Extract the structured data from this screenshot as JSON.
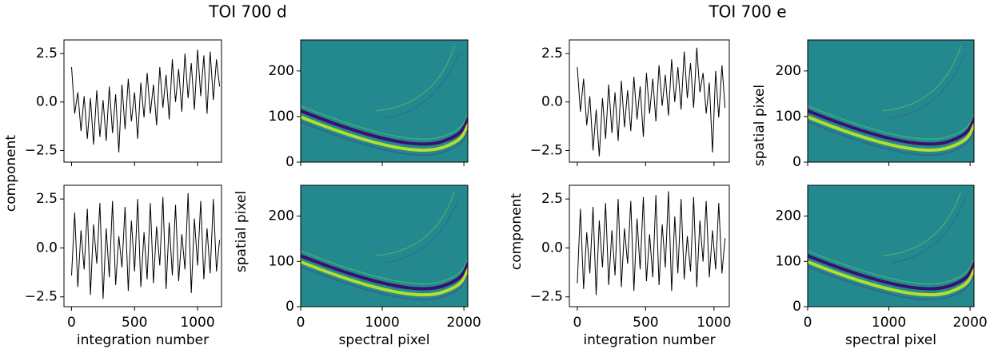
{
  "figure_titles": [
    "TOI 700 d",
    "TOI 700 e"
  ],
  "chart_data": [
    {
      "type": "line",
      "ylabel": "component",
      "show_xtick_labels": false,
      "x": [
        0,
        25,
        50,
        75,
        100,
        125,
        150,
        175,
        200,
        225,
        250,
        275,
        300,
        325,
        350,
        375,
        400,
        425,
        450,
        475,
        500,
        525,
        550,
        575,
        600,
        625,
        650,
        675,
        700,
        725,
        750,
        775,
        800,
        825,
        850,
        875,
        900,
        925,
        950,
        975,
        1000,
        1025,
        1050,
        1075,
        1100,
        1125,
        1150,
        1175
      ],
      "values": [
        1.8,
        -0.6,
        0.5,
        -1.5,
        0.3,
        -1.9,
        0.2,
        -2.2,
        0.6,
        -1.8,
        0.1,
        -2.0,
        0.8,
        -1.6,
        0.4,
        -2.6,
        0.9,
        -1.4,
        1.2,
        -1.0,
        0.5,
        -1.9,
        1.0,
        -0.8,
        1.5,
        -0.6,
        0.9,
        -1.2,
        1.8,
        -0.3,
        1.4,
        -0.9,
        2.2,
        0.0,
        1.7,
        -0.5,
        2.5,
        0.2,
        2.0,
        -0.4,
        2.7,
        0.3,
        2.4,
        -0.6,
        2.6,
        0.1,
        2.2,
        0.8
      ],
      "color": "#000000",
      "xlim": [
        -60,
        1190
      ],
      "ylim": [
        -3.1,
        3.2
      ],
      "xticks": [
        0,
        500,
        1000
      ],
      "yticks": [
        {
          "value": -2.5,
          "label": "−2.5"
        },
        {
          "value": 0,
          "label": "0.0"
        },
        2.5
      ]
    },
    {
      "type": "line",
      "xlabel": "integration number",
      "show_xtick_labels": true,
      "x": [
        0,
        25,
        50,
        75,
        100,
        125,
        150,
        175,
        200,
        225,
        250,
        275,
        300,
        325,
        350,
        375,
        400,
        425,
        450,
        475,
        500,
        525,
        550,
        575,
        600,
        625,
        650,
        675,
        700,
        725,
        750,
        775,
        800,
        825,
        850,
        875,
        900,
        925,
        950,
        975,
        1000,
        1025,
        1050,
        1075,
        1100,
        1125,
        1150,
        1175
      ],
      "values": [
        -1.4,
        1.8,
        -2.0,
        0.9,
        -1.1,
        2.0,
        -2.4,
        1.2,
        -0.8,
        2.3,
        -2.6,
        1.0,
        -1.5,
        2.4,
        -1.9,
        0.6,
        -1.0,
        2.1,
        -2.2,
        1.4,
        -1.2,
        2.5,
        -2.0,
        0.8,
        -1.6,
        2.3,
        -1.8,
        1.1,
        -0.9,
        2.6,
        -2.1,
        1.3,
        -1.4,
        2.2,
        -1.7,
        0.7,
        -1.1,
        2.8,
        -2.3,
        1.5,
        -0.9,
        2.4,
        -1.6,
        1.0,
        -1.3,
        2.5,
        -1.2,
        0.4
      ],
      "color": "#000000",
      "xlim": [
        -60,
        1190
      ],
      "ylim": [
        -3.0,
        3.2
      ],
      "xticks": [
        0,
        500,
        1000
      ],
      "yticks": [
        {
          "value": -2.5,
          "label": "−2.5"
        },
        {
          "value": 0,
          "label": "0.0"
        },
        2.5
      ]
    },
    {
      "type": "image",
      "show_xtick_labels": false,
      "xlim": [
        0,
        2048
      ],
      "ylim": [
        0,
        268
      ],
      "xticks": [
        0,
        1000,
        2000
      ],
      "yticks": [
        0,
        100,
        200
      ]
    },
    {
      "type": "image",
      "ylabel": "spatial pixel",
      "xlabel": "spectral pixel",
      "show_xtick_labels": true,
      "xlim": [
        0,
        2048
      ],
      "ylim": [
        0,
        268
      ],
      "xticks": [
        0,
        1000,
        2000
      ],
      "yticks": [
        0,
        100,
        200
      ]
    },
    {
      "type": "line",
      "show_xtick_labels": false,
      "x": [
        0,
        23,
        46,
        69,
        92,
        115,
        138,
        161,
        184,
        207,
        230,
        253,
        276,
        299,
        322,
        345,
        368,
        391,
        414,
        437,
        460,
        483,
        506,
        529,
        552,
        575,
        598,
        621,
        644,
        667,
        690,
        713,
        736,
        759,
        782,
        805,
        828,
        851,
        874,
        897,
        920,
        943,
        966,
        989,
        1012,
        1035,
        1058,
        1081
      ],
      "values": [
        1.8,
        -0.5,
        1.2,
        -1.2,
        0.3,
        -2.5,
        -0.4,
        -2.8,
        0.2,
        -1.9,
        0.9,
        -1.6,
        0.5,
        -2.0,
        1.1,
        -1.3,
        0.6,
        -1.5,
        1.3,
        -0.9,
        0.8,
        -1.8,
        1.5,
        -0.6,
        1.2,
        -1.0,
        1.9,
        -0.2,
        1.4,
        -0.7,
        2.2,
        0.0,
        1.8,
        -0.4,
        2.6,
        0.2,
        2.0,
        -0.3,
        2.8,
        0.5,
        1.5,
        -0.6,
        1.0,
        -2.6,
        1.6,
        -0.8,
        1.9,
        -0.3
      ],
      "color": "#000000",
      "xlim": [
        -58,
        1112
      ],
      "ylim": [
        -3.1,
        3.2
      ],
      "xticks": [
        0,
        500,
        1000
      ],
      "yticks": [
        {
          "value": -2.5,
          "label": "−2.5"
        },
        {
          "value": 0,
          "label": "0.0"
        },
        2.5
      ]
    },
    {
      "type": "line",
      "ylabel": "component",
      "xlabel": "integration number",
      "show_xtick_labels": true,
      "x": [
        0,
        23,
        46,
        69,
        92,
        115,
        138,
        161,
        184,
        207,
        230,
        253,
        276,
        299,
        322,
        345,
        368,
        391,
        414,
        437,
        460,
        483,
        506,
        529,
        552,
        575,
        598,
        621,
        644,
        667,
        690,
        713,
        736,
        759,
        782,
        805,
        828,
        851,
        874,
        897,
        920,
        943,
        966,
        989,
        1012,
        1035,
        1058,
        1081
      ],
      "values": [
        -1.8,
        2.0,
        -2.1,
        0.8,
        -1.3,
        2.1,
        -2.4,
        1.4,
        -1.0,
        2.3,
        -1.9,
        0.9,
        -1.4,
        2.5,
        -2.0,
        1.0,
        -0.8,
        2.4,
        -2.2,
        1.5,
        -1.1,
        2.6,
        -1.7,
        0.7,
        -1.5,
        2.7,
        -1.9,
        1.2,
        -1.0,
        2.9,
        -2.2,
        1.6,
        -1.3,
        2.5,
        -1.6,
        0.6,
        -1.2,
        2.6,
        -2.0,
        1.4,
        -0.7,
        2.4,
        -1.5,
        0.9,
        -1.1,
        2.3,
        -1.3,
        0.5
      ],
      "color": "#000000",
      "xlim": [
        -58,
        1112
      ],
      "ylim": [
        -3.0,
        3.2
      ],
      "xticks": [
        0,
        500,
        1000
      ],
      "yticks": [
        {
          "value": -2.5,
          "label": "−2.5"
        },
        {
          "value": 0,
          "label": "0.0"
        },
        2.5
      ]
    },
    {
      "type": "image",
      "ylabel": "spatial pixel",
      "show_xtick_labels": false,
      "xlim": [
        0,
        2048
      ],
      "ylim": [
        0,
        268
      ],
      "xticks": [
        0,
        1000,
        2000
      ],
      "yticks": [
        0,
        100,
        200
      ]
    },
    {
      "type": "image",
      "xlabel": "spectral pixel",
      "show_xtick_labels": true,
      "xlim": [
        0,
        2048
      ],
      "ylim": [
        0,
        268
      ],
      "xticks": [
        0,
        1000,
        2000
      ],
      "yticks": [
        0,
        100,
        200
      ]
    }
  ]
}
